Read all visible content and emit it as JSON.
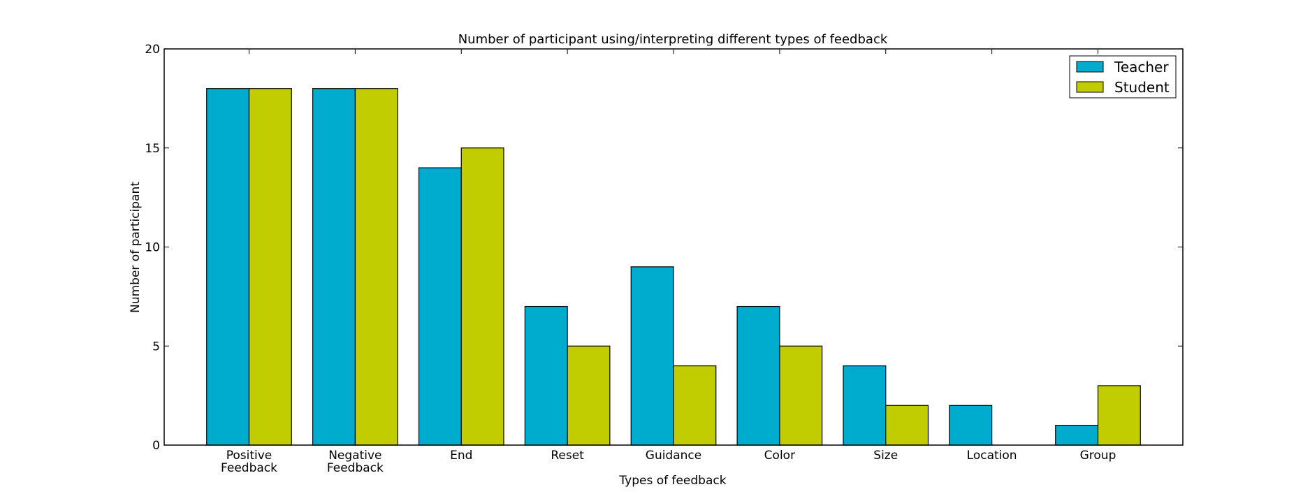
{
  "chart_data": {
    "type": "bar",
    "title": "Number of participant using/interpreting different types of feedback",
    "xlabel": "Types of feedback",
    "ylabel": "Number of participant",
    "ylim": [
      0,
      20
    ],
    "yticks": [
      0,
      5,
      10,
      15,
      20
    ],
    "categories": [
      [
        "Positive",
        "Feedback"
      ],
      [
        "Negative",
        "Feedback"
      ],
      [
        "End"
      ],
      [
        "Reset"
      ],
      [
        "Guidance"
      ],
      [
        "Color"
      ],
      [
        "Size"
      ],
      [
        "Location"
      ],
      [
        "Group"
      ]
    ],
    "series": [
      {
        "name": "Teacher",
        "color": "#00acce",
        "values": [
          18,
          18,
          14,
          7,
          9,
          7,
          4,
          2,
          1
        ]
      },
      {
        "name": "Student",
        "color": "#c2cd00",
        "values": [
          18,
          18,
          15,
          5,
          4,
          5,
          2,
          0,
          3
        ]
      }
    ],
    "grid": false,
    "legend": "top-right"
  }
}
